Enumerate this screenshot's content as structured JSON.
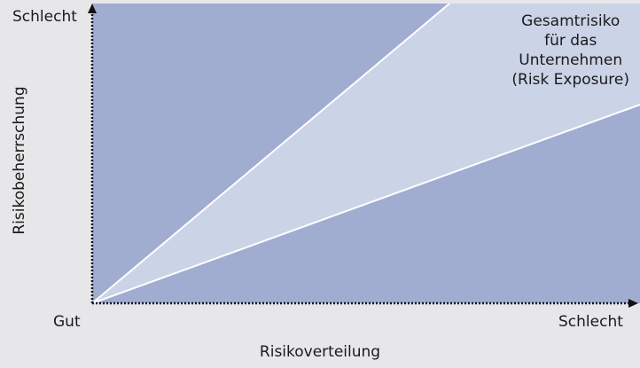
{
  "diagram": {
    "y_axis_label": "Risikobeherrschung",
    "y_axis_top": "Schlecht",
    "x_axis_label": "Risikoverteilung",
    "x_axis_origin": "Gut",
    "x_axis_right": "Schlecht",
    "zone_label": [
      "Gesamtrisiko",
      "für das",
      "Unternehmen",
      "(Risk Exposure)"
    ]
  },
  "colors": {
    "background": "#e7e7e9",
    "plot_fill": "#a1acd1",
    "exposure_band": "#cbd3e7",
    "boundary_line": "#ffffff",
    "axis": "#111111"
  }
}
